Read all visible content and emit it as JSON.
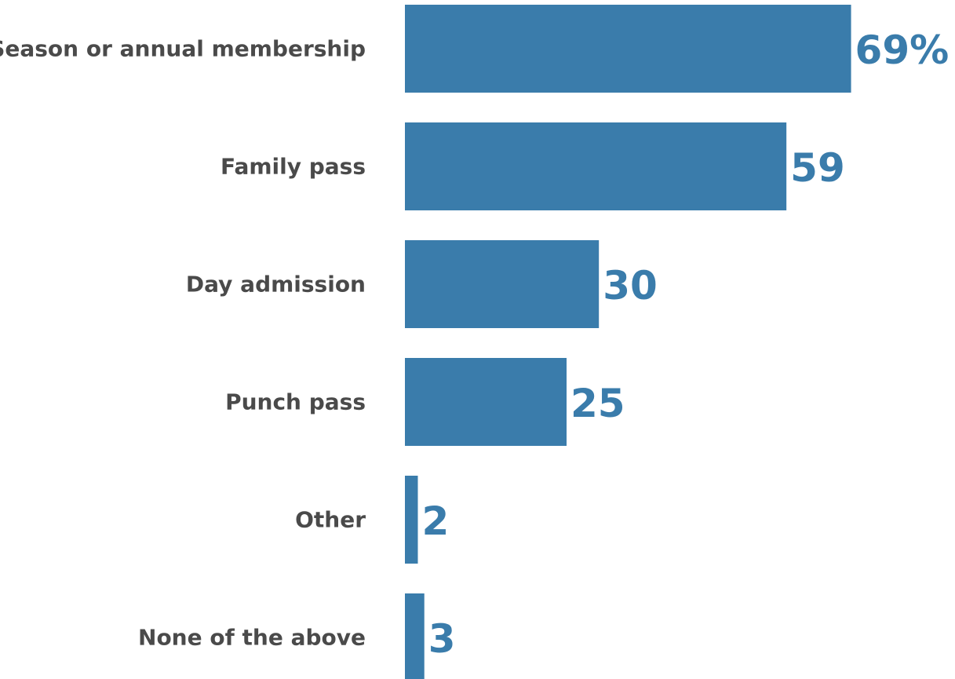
{
  "chart_data": {
    "type": "bar",
    "orientation": "horizontal",
    "title": "",
    "xlabel": "",
    "ylabel": "",
    "categories": [
      "Season or annual membership",
      "Family pass",
      "Day admission",
      "Punch pass",
      "Other",
      "None of the above"
    ],
    "values": [
      69,
      59,
      30,
      25,
      2,
      3
    ],
    "value_labels": [
      "69%",
      "59",
      "30",
      "25",
      "2",
      "3"
    ],
    "xlim": [
      0,
      69
    ],
    "grid": false,
    "legend": "none",
    "colors": {
      "bar": "#3a7cab",
      "value_text": "#3a7cab",
      "category_text": "#4a4a4a"
    }
  }
}
